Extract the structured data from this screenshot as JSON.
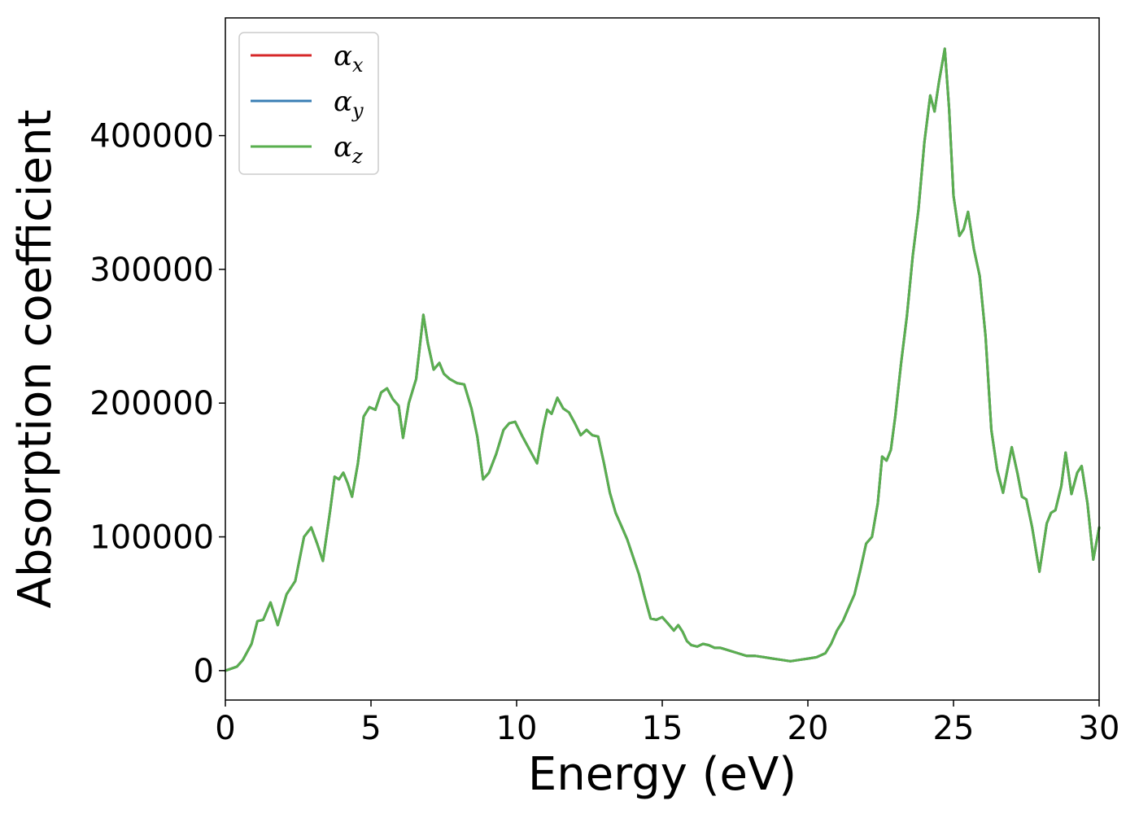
{
  "chart_data": {
    "type": "line",
    "title": "",
    "xlabel": "Energy (eV)",
    "ylabel": "Absorption coefficient",
    "xlim": [
      0,
      30
    ],
    "ylim": [
      -22000,
      488000
    ],
    "xticks": [
      0,
      5,
      10,
      15,
      20,
      25,
      30
    ],
    "yticks": [
      0,
      100000,
      200000,
      300000,
      400000
    ],
    "grid": false,
    "legend": "top-left",
    "colors": {
      "alpha_x": "#d62728",
      "alpha_y": "#3a7fb5",
      "alpha_z": "#5aaf4f"
    },
    "series": [
      {
        "name": "α_x",
        "symbol": "α",
        "sub": "x",
        "color": "#d62728"
      },
      {
        "name": "α_y",
        "symbol": "α",
        "sub": "y",
        "color": "#3a7fb5"
      },
      {
        "name": "α_z",
        "symbol": "α",
        "sub": "z",
        "color": "#5aaf4f"
      }
    ],
    "x": [
      0.0,
      0.4,
      0.6,
      0.9,
      1.1,
      1.3,
      1.55,
      1.8,
      2.1,
      2.4,
      2.7,
      2.95,
      3.15,
      3.35,
      3.6,
      3.75,
      3.9,
      4.05,
      4.2,
      4.35,
      4.55,
      4.75,
      4.95,
      5.15,
      5.35,
      5.55,
      5.75,
      5.95,
      6.1,
      6.3,
      6.55,
      6.8,
      6.95,
      7.15,
      7.35,
      7.5,
      7.7,
      7.95,
      8.2,
      8.45,
      8.65,
      8.85,
      9.05,
      9.3,
      9.55,
      9.75,
      9.95,
      10.2,
      10.45,
      10.7,
      10.9,
      11.05,
      11.2,
      11.4,
      11.6,
      11.8,
      12.0,
      12.2,
      12.4,
      12.6,
      12.8,
      13.0,
      13.2,
      13.4,
      13.6,
      13.8,
      14.0,
      14.2,
      14.4,
      14.6,
      14.8,
      15.0,
      15.2,
      15.4,
      15.55,
      15.7,
      15.85,
      16.0,
      16.2,
      16.4,
      16.6,
      16.8,
      17.0,
      17.3,
      17.6,
      17.9,
      18.2,
      18.5,
      18.8,
      19.1,
      19.4,
      19.7,
      20.0,
      20.3,
      20.6,
      20.8,
      21.0,
      21.2,
      21.4,
      21.6,
      21.8,
      22.0,
      22.2,
      22.4,
      22.55,
      22.7,
      22.85,
      23.0,
      23.2,
      23.4,
      23.6,
      23.8,
      24.0,
      24.2,
      24.35,
      24.5,
      24.7,
      24.85,
      25.0,
      25.2,
      25.35,
      25.5,
      25.7,
      25.9,
      26.1,
      26.3,
      26.5,
      26.7,
      26.85,
      27.0,
      27.2,
      27.35,
      27.5,
      27.7,
      27.95,
      28.2,
      28.35,
      28.5,
      28.7,
      28.85,
      29.05,
      29.25,
      29.4,
      29.6,
      29.8,
      30.0
    ],
    "values": [
      0,
      3000,
      8000,
      20000,
      37000,
      38000,
      51000,
      34000,
      57000,
      67000,
      100000,
      107000,
      95000,
      82000,
      120000,
      145000,
      143000,
      148000,
      140000,
      130000,
      155000,
      190000,
      197000,
      195000,
      208000,
      211000,
      203000,
      198000,
      174000,
      200000,
      218000,
      266000,
      245000,
      225000,
      230000,
      222000,
      218000,
      215000,
      214000,
      196000,
      175000,
      143000,
      148000,
      162000,
      180000,
      185000,
      186000,
      175000,
      165000,
      155000,
      180000,
      195000,
      192000,
      204000,
      196000,
      193000,
      185000,
      176000,
      180000,
      176000,
      175000,
      155000,
      133000,
      118000,
      108000,
      98000,
      85000,
      72000,
      55000,
      39000,
      38000,
      40000,
      35000,
      30000,
      34000,
      29000,
      22000,
      19000,
      18000,
      20000,
      19000,
      17000,
      17000,
      15000,
      13000,
      11000,
      11000,
      10000,
      9000,
      8000,
      7000,
      8000,
      9000,
      10000,
      13000,
      20000,
      30000,
      37000,
      47000,
      57000,
      75000,
      95000,
      100000,
      125000,
      160000,
      157000,
      165000,
      190000,
      230000,
      265000,
      310000,
      345000,
      395000,
      430000,
      418000,
      440000,
      465000,
      420000,
      355000,
      325000,
      330000,
      343000,
      315000,
      295000,
      250000,
      180000,
      150000,
      133000,
      150000,
      167000,
      147000,
      130000,
      128000,
      107000,
      74000,
      110000,
      118000,
      120000,
      138000,
      163000,
      132000,
      148000,
      153000,
      125000,
      83000,
      107000
    ]
  }
}
